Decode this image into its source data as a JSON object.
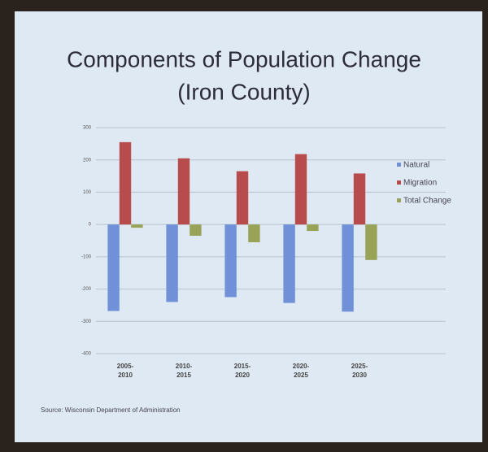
{
  "chart_data": {
    "type": "bar",
    "title": "Components of Population Change",
    "subtitle": "(Iron County)",
    "categories": [
      "2005-2010",
      "2010-2015",
      "2015-2020",
      "2020-2025",
      "2025-2030"
    ],
    "series": [
      {
        "name": "Natural",
        "color": "#7090d8",
        "values": [
          -268,
          -240,
          -225,
          -243,
          -270
        ]
      },
      {
        "name": "Migration",
        "color": "#b84b4b",
        "values": [
          255,
          205,
          165,
          218,
          158
        ]
      },
      {
        "name": "Total Change",
        "color": "#98a357",
        "values": [
          -10,
          -35,
          -55,
          -20,
          -110
        ]
      }
    ],
    "ylim": [
      -400,
      300
    ],
    "yticks": [
      -400,
      -300,
      -200,
      -100,
      0,
      100,
      200,
      300
    ],
    "grid": true,
    "legend": "right",
    "source": "Source: Wisconsin Department of Administration"
  }
}
